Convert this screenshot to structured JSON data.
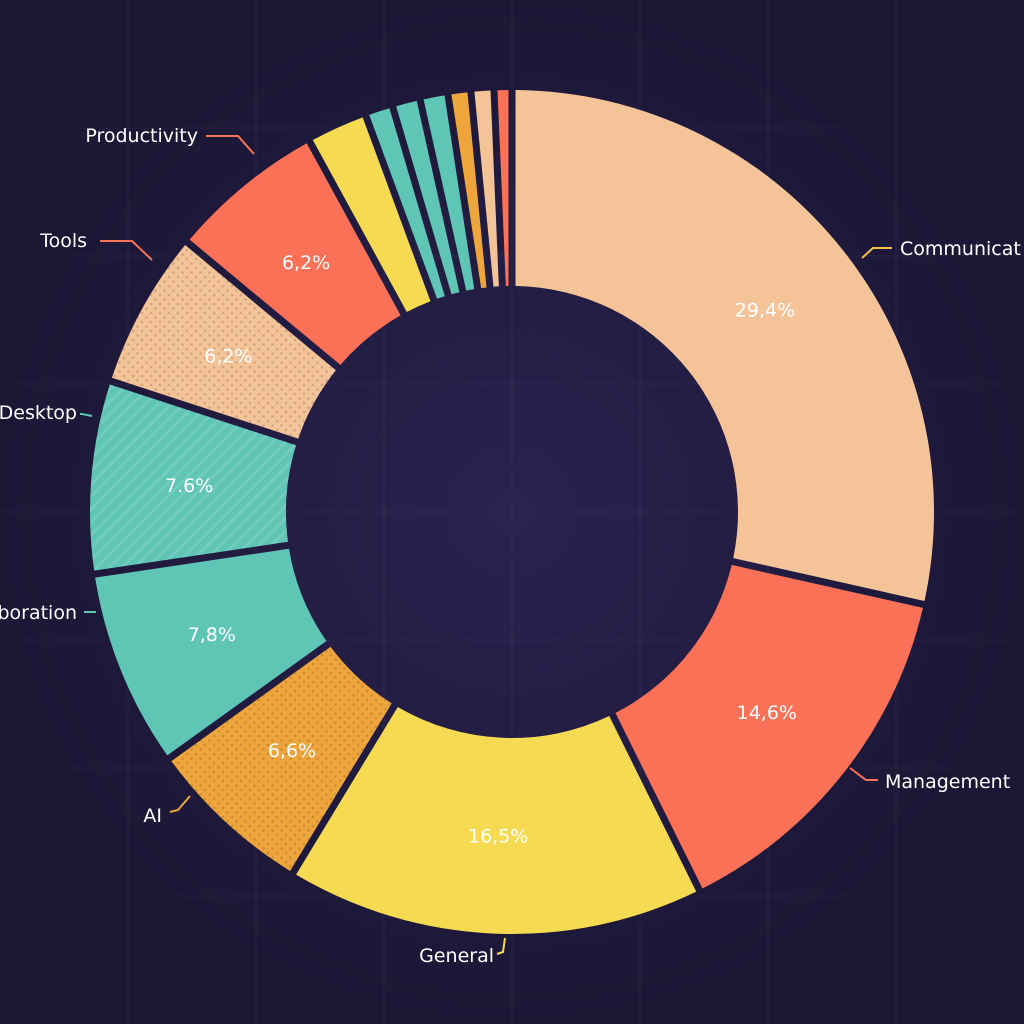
{
  "chart_data": {
    "type": "pie",
    "variant": "donut",
    "slices": [
      {
        "name": "Communication",
        "label": "Communicat",
        "value": 29.4,
        "value_label": "29,4%",
        "color": "#f4c398",
        "pattern": "none",
        "leader": "#f2c14e"
      },
      {
        "name": "Management",
        "label": "Management",
        "value": 14.6,
        "value_label": "14,6%",
        "color": "#fb7157",
        "pattern": "none",
        "leader": "#fb7157"
      },
      {
        "name": "General",
        "label": "General",
        "value": 16.5,
        "value_label": "16,5%",
        "color": "#f5da52",
        "pattern": "none",
        "leader": "#f5da52"
      },
      {
        "name": "AI",
        "label": "AI",
        "value": 6.6,
        "value_label": "6,6%",
        "color": "#eea53c",
        "pattern": "dots",
        "leader": "#eea53c"
      },
      {
        "name": "Collaboration",
        "label": "boration",
        "value": 7.8,
        "value_label": "7,8%",
        "color": "#5fc5b5",
        "pattern": "none",
        "leader": "#5fc5b5"
      },
      {
        "name": "Desktop",
        "label": "Desktop",
        "value": 7.6,
        "value_label": "7.6%",
        "color": "#5fc5b5",
        "pattern": "stripes",
        "leader": "#5fc5b5"
      },
      {
        "name": "Tools",
        "label": "Tools",
        "value": 6.2,
        "value_label": "6,2%",
        "color": "#f4c398",
        "pattern": "dots",
        "leader": "#fb7157"
      },
      {
        "name": "Productivity",
        "label": "Productivity",
        "value": 6.2,
        "value_label": "6,2%",
        "color": "#fb7157",
        "pattern": "none",
        "leader": "#fb7157"
      },
      {
        "name": "Unlabeled 1",
        "label": "",
        "value": 2.4,
        "value_label": "",
        "color": "#f5da52",
        "pattern": "none",
        "leader": ""
      },
      {
        "name": "Unlabeled 2",
        "label": "",
        "value": 1.1,
        "value_label": "",
        "color": "#5fc5b5",
        "pattern": "none",
        "leader": ""
      },
      {
        "name": "Unlabeled 3",
        "label": "",
        "value": 1.1,
        "value_label": "",
        "color": "#5fc5b5",
        "pattern": "none",
        "leader": ""
      },
      {
        "name": "Unlabeled 4",
        "label": "",
        "value": 1.1,
        "value_label": "",
        "color": "#5fc5b5",
        "pattern": "none",
        "leader": ""
      },
      {
        "name": "Unlabeled 5",
        "label": "",
        "value": 0.9,
        "value_label": "",
        "color": "#eea53c",
        "pattern": "none",
        "leader": ""
      },
      {
        "name": "Unlabeled 6",
        "label": "",
        "value": 0.9,
        "value_label": "",
        "color": "#f4c398",
        "pattern": "none",
        "leader": ""
      },
      {
        "name": "Unlabeled 7",
        "label": "",
        "value": 0.7,
        "value_label": "",
        "color": "#fb7157",
        "pattern": "none",
        "leader": ""
      }
    ],
    "start": "top",
    "direction": "clockwise",
    "grid": true,
    "background": "#1c1838"
  }
}
